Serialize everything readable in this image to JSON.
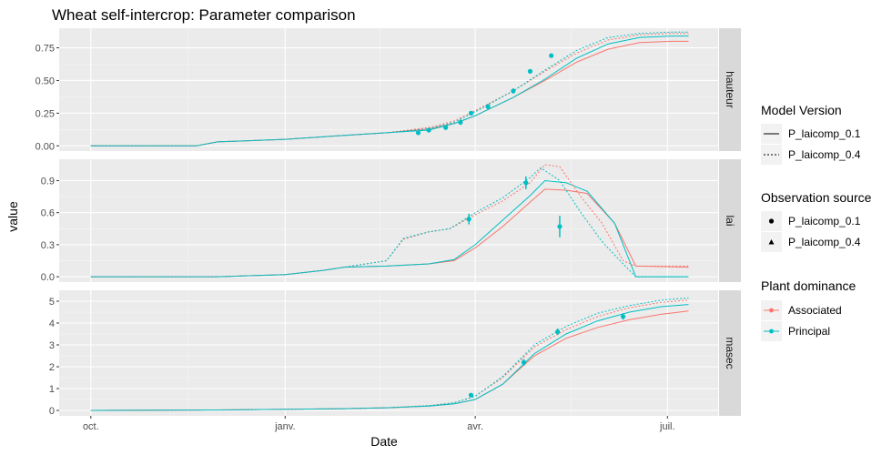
{
  "chart_data": {
    "type": "line",
    "title": "Wheat self-intercrop: Parameter comparison",
    "xlabel": "Date",
    "ylabel": "value",
    "x_ticks": [
      {
        "label": "oct.",
        "day": 0
      },
      {
        "label": "janv.",
        "day": 92
      },
      {
        "label": "avr.",
        "day": 182
      },
      {
        "label": "juil.",
        "day": 273
      }
    ],
    "xlim": [
      -15,
      297
    ],
    "legend": {
      "placement": "right",
      "model_version": {
        "title": "Model Version",
        "items": [
          {
            "label": "P_laicomp_0.1",
            "linetype": "solid"
          },
          {
            "label": "P_laicomp_0.4",
            "linetype": "dotted"
          }
        ]
      },
      "observation_source": {
        "title": "Observation source",
        "items": [
          {
            "label": "P_laicomp_0.1",
            "shape": "circle"
          },
          {
            "label": "P_laicomp_0.4",
            "shape": "triangle"
          }
        ]
      },
      "plant_dominance": {
        "title": "Plant dominance",
        "items": [
          {
            "label": "Associated",
            "color": "#F8766D"
          },
          {
            "label": "Principal",
            "color": "#00BFC4"
          }
        ]
      }
    },
    "panels": [
      {
        "strip": "hauteur",
        "ylim": [
          -0.04,
          0.9
        ],
        "y_ticks": [
          {
            "value": 0.0,
            "label": "0.00"
          },
          {
            "value": 0.25,
            "label": "0.25"
          },
          {
            "value": 0.5,
            "label": "0.50"
          },
          {
            "value": 0.75,
            "label": "0.75"
          }
        ],
        "series": [
          {
            "name": "Associated P_laicomp_0.1",
            "color": "#F8766D",
            "dash": false,
            "x": [
              0,
              50,
              60,
              92,
              120,
              140,
              160,
              172,
              182,
              200,
              215,
              230,
              245,
              260,
              275,
              283
            ],
            "y": [
              0,
              0,
              0.03,
              0.05,
              0.08,
              0.1,
              0.13,
              0.17,
              0.23,
              0.37,
              0.5,
              0.64,
              0.74,
              0.79,
              0.8,
              0.8
            ]
          },
          {
            "name": "Principal P_laicomp_0.1",
            "color": "#00BFC4",
            "dash": false,
            "x": [
              0,
              50,
              60,
              92,
              120,
              140,
              160,
              172,
              182,
              200,
              215,
              230,
              245,
              260,
              275,
              283
            ],
            "y": [
              0,
              0,
              0.03,
              0.05,
              0.08,
              0.1,
              0.12,
              0.17,
              0.23,
              0.37,
              0.51,
              0.67,
              0.78,
              0.83,
              0.84,
              0.84
            ]
          },
          {
            "name": "Associated P_laicomp_0.4",
            "color": "#F8766D",
            "dash": true,
            "x": [
              0,
              50,
              60,
              92,
              120,
              140,
              160,
              172,
              182,
              200,
              215,
              230,
              245,
              260,
              275,
              283
            ],
            "y": [
              0,
              0,
              0.03,
              0.05,
              0.08,
              0.1,
              0.14,
              0.19,
              0.27,
              0.42,
              0.57,
              0.71,
              0.81,
              0.85,
              0.86,
              0.86
            ]
          },
          {
            "name": "Principal P_laicomp_0.4",
            "color": "#00BFC4",
            "dash": true,
            "x": [
              0,
              50,
              60,
              92,
              120,
              140,
              160,
              172,
              182,
              200,
              215,
              230,
              245,
              260,
              275,
              283
            ],
            "y": [
              0,
              0,
              0.03,
              0.05,
              0.08,
              0.1,
              0.13,
              0.18,
              0.26,
              0.42,
              0.58,
              0.73,
              0.83,
              0.86,
              0.87,
              0.87
            ]
          }
        ],
        "observations": [
          {
            "x": 155,
            "y": 0.1,
            "err": 0.01
          },
          {
            "x": 160,
            "y": 0.12,
            "err": 0.015
          },
          {
            "x": 168,
            "y": 0.14,
            "err": 0.015
          },
          {
            "x": 175,
            "y": 0.18,
            "err": 0.02
          },
          {
            "x": 180,
            "y": 0.25,
            "err": 0.015
          },
          {
            "x": 188,
            "y": 0.3,
            "err": 0.02
          },
          {
            "x": 200,
            "y": 0.42,
            "err": 0.02
          },
          {
            "x": 208,
            "y": 0.57,
            "err": 0.015
          },
          {
            "x": 218,
            "y": 0.69,
            "err": 0.015
          }
        ]
      },
      {
        "strip": "lai",
        "ylim": [
          -0.05,
          1.1
        ],
        "y_ticks": [
          {
            "value": 0.0,
            "label": "0.0"
          },
          {
            "value": 0.3,
            "label": "0.3"
          },
          {
            "value": 0.6,
            "label": "0.6"
          },
          {
            "value": 0.9,
            "label": "0.9"
          }
        ],
        "series": [
          {
            "name": "Associated P_laicomp_0.1",
            "color": "#F8766D",
            "dash": false,
            "x": [
              0,
              60,
              92,
              110,
              120,
              140,
              160,
              172,
              182,
              195,
              208,
              215,
              225,
              235,
              248,
              258,
              283
            ],
            "y": [
              0,
              0,
              0.02,
              0.06,
              0.09,
              0.1,
              0.12,
              0.15,
              0.27,
              0.47,
              0.7,
              0.82,
              0.81,
              0.78,
              0.5,
              0.1,
              0.09
            ]
          },
          {
            "name": "Principal P_laicomp_0.1",
            "color": "#00BFC4",
            "dash": false,
            "x": [
              0,
              60,
              92,
              110,
              120,
              140,
              160,
              172,
              182,
              195,
              208,
              215,
              225,
              235,
              248,
              258,
              283
            ],
            "y": [
              0,
              0,
              0.02,
              0.06,
              0.09,
              0.1,
              0.12,
              0.16,
              0.3,
              0.53,
              0.76,
              0.9,
              0.88,
              0.8,
              0.5,
              0.0,
              0.0
            ]
          },
          {
            "name": "Associated P_laicomp_0.4",
            "color": "#F8766D",
            "dash": true,
            "x": [
              0,
              60,
              92,
              110,
              120,
              140,
              148,
              160,
              170,
              182,
              195,
              208,
              215,
              222,
              232,
              242,
              252,
              258,
              283
            ],
            "y": [
              0,
              0,
              0.02,
              0.06,
              0.09,
              0.15,
              0.35,
              0.42,
              0.45,
              0.58,
              0.71,
              0.88,
              1.05,
              1.03,
              0.75,
              0.5,
              0.15,
              0.1,
              0.1
            ]
          },
          {
            "name": "Principal P_laicomp_0.4",
            "color": "#00BFC4",
            "dash": true,
            "x": [
              0,
              60,
              92,
              110,
              120,
              140,
              148,
              160,
              170,
              182,
              195,
              208,
              213,
              222,
              232,
              242,
              252,
              258,
              283
            ],
            "y": [
              0,
              0,
              0.02,
              0.06,
              0.09,
              0.15,
              0.36,
              0.42,
              0.45,
              0.6,
              0.74,
              0.93,
              1.02,
              0.9,
              0.6,
              0.33,
              0.12,
              0.0,
              0.0
            ]
          }
        ],
        "observations": [
          {
            "x": 179,
            "y": 0.54,
            "err": 0.05
          },
          {
            "x": 206,
            "y": 0.88,
            "err": 0.06
          },
          {
            "x": 222,
            "y": 0.47,
            "err": 0.1
          }
        ]
      },
      {
        "strip": "masec",
        "ylim": [
          -0.25,
          5.5
        ],
        "y_ticks": [
          {
            "value": 0,
            "label": "0"
          },
          {
            "value": 1,
            "label": "1"
          },
          {
            "value": 2,
            "label": "2"
          },
          {
            "value": 3,
            "label": "3"
          },
          {
            "value": 4,
            "label": "4"
          },
          {
            "value": 5,
            "label": "5"
          }
        ],
        "series": [
          {
            "name": "Associated P_laicomp_0.1",
            "color": "#F8766D",
            "dash": false,
            "x": [
              0,
              60,
              92,
              120,
              140,
              160,
              172,
              182,
              195,
              210,
              225,
              240,
              255,
              270,
              283
            ],
            "y": [
              0,
              0.02,
              0.05,
              0.08,
              0.12,
              0.2,
              0.3,
              0.5,
              1.2,
              2.5,
              3.3,
              3.8,
              4.15,
              4.4,
              4.55
            ]
          },
          {
            "name": "Principal P_laicomp_0.1",
            "color": "#00BFC4",
            "dash": false,
            "x": [
              0,
              60,
              92,
              120,
              140,
              160,
              172,
              182,
              195,
              210,
              225,
              240,
              255,
              270,
              283
            ],
            "y": [
              0,
              0.02,
              0.05,
              0.08,
              0.12,
              0.2,
              0.3,
              0.5,
              1.2,
              2.6,
              3.5,
              4.1,
              4.5,
              4.75,
              4.85
            ]
          },
          {
            "name": "Associated P_laicomp_0.4",
            "color": "#F8766D",
            "dash": true,
            "x": [
              0,
              60,
              92,
              120,
              140,
              160,
              172,
              182,
              195,
              210,
              225,
              240,
              255,
              270,
              283
            ],
            "y": [
              0,
              0.02,
              0.05,
              0.08,
              0.12,
              0.22,
              0.35,
              0.65,
              1.5,
              2.9,
              3.7,
              4.3,
              4.7,
              4.95,
              5.05
            ]
          },
          {
            "name": "Principal P_laicomp_0.4",
            "color": "#00BFC4",
            "dash": true,
            "x": [
              0,
              60,
              92,
              120,
              140,
              160,
              172,
              182,
              195,
              210,
              225,
              240,
              255,
              270,
              283
            ],
            "y": [
              0,
              0.02,
              0.05,
              0.08,
              0.12,
              0.22,
              0.35,
              0.65,
              1.55,
              3.0,
              3.85,
              4.45,
              4.8,
              5.05,
              5.15
            ]
          }
        ],
        "observations": [
          {
            "x": 180,
            "y": 0.7,
            "err": 0.05
          },
          {
            "x": 205,
            "y": 2.2,
            "err": 0.15
          },
          {
            "x": 221,
            "y": 3.6,
            "err": 0.15
          },
          {
            "x": 252,
            "y": 4.3,
            "err": 0.15
          }
        ]
      }
    ]
  }
}
